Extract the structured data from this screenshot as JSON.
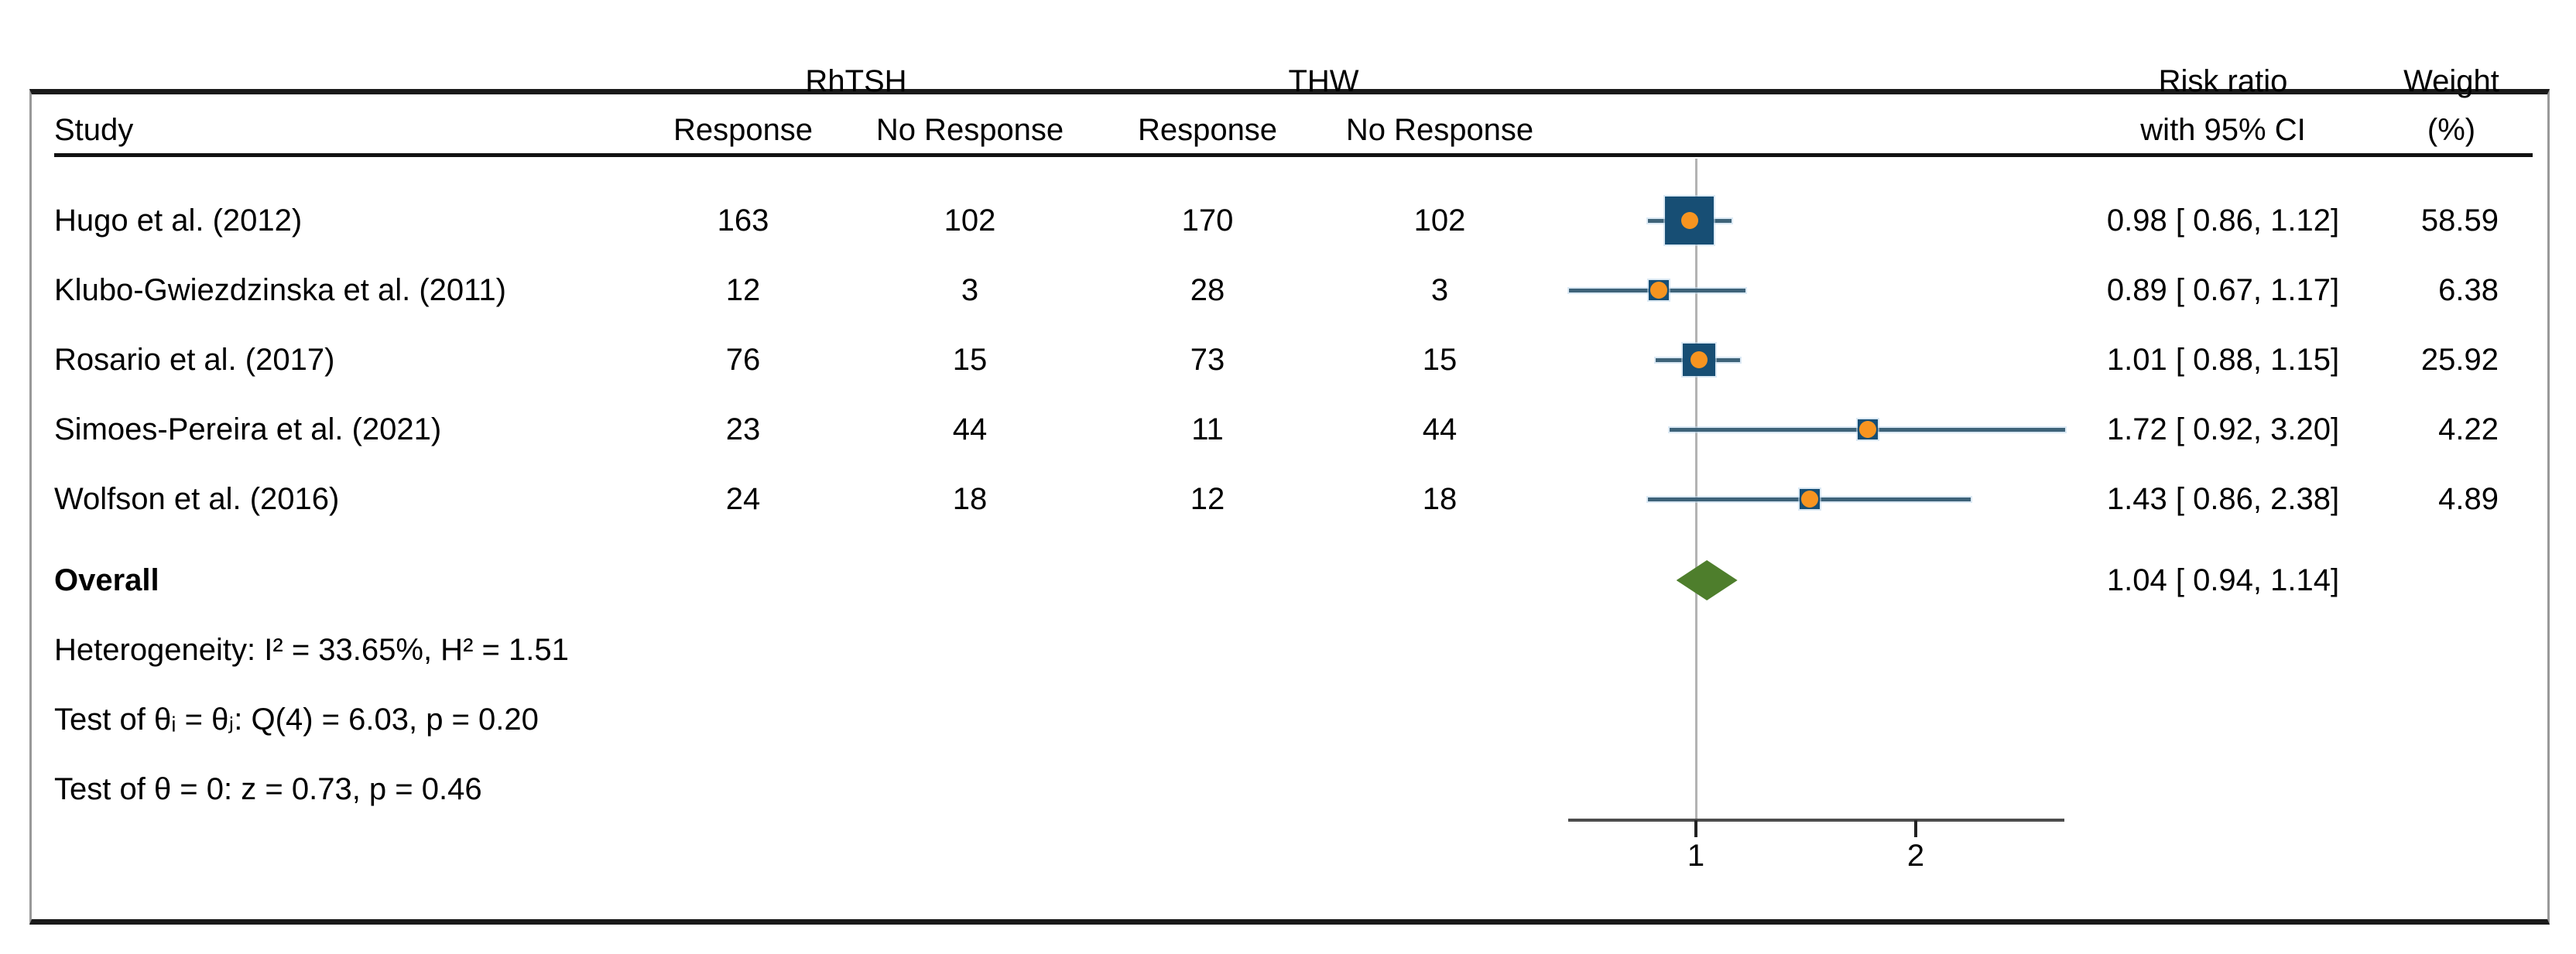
{
  "chart_data": {
    "type": "forest",
    "header": {
      "study_col": "Study",
      "group1": "RhTSH",
      "group2": "THW",
      "sub_cols": [
        "Response",
        "No Response",
        "Response",
        "No Response"
      ],
      "effect_line1": "Risk ratio",
      "effect_line2": "with 95% CI",
      "weight_line1": "Weight",
      "weight_line2": "(%)"
    },
    "studies": [
      {
        "label": "Hugo et al. (2012)",
        "rhtsh_response": 163,
        "rhtsh_no_response": 102,
        "thw_response": 170,
        "thw_no_response": 102,
        "rr": 0.98,
        "ci_low": 0.86,
        "ci_high": 1.12,
        "rr_text": "0.98 [ 0.86, 1.12]",
        "weight": 58.59,
        "weight_text": "58.59"
      },
      {
        "label": "Klubo-Gwiezdzinska et al. (2011)",
        "rhtsh_response": 12,
        "rhtsh_no_response": 3,
        "thw_response": 28,
        "thw_no_response": 3,
        "rr": 0.89,
        "ci_low": 0.67,
        "ci_high": 1.17,
        "rr_text": "0.89 [ 0.67, 1.17]",
        "weight": 6.38,
        "weight_text": "6.38"
      },
      {
        "label": "Rosario et al. (2017)",
        "rhtsh_response": 76,
        "rhtsh_no_response": 15,
        "thw_response": 73,
        "thw_no_response": 15,
        "rr": 1.01,
        "ci_low": 0.88,
        "ci_high": 1.15,
        "rr_text": "1.01 [ 0.88, 1.15]",
        "weight": 25.92,
        "weight_text": "25.92"
      },
      {
        "label": "Simoes-Pereira et al. (2021)",
        "rhtsh_response": 23,
        "rhtsh_no_response": 44,
        "thw_response": 11,
        "thw_no_response": 44,
        "rr": 1.72,
        "ci_low": 0.92,
        "ci_high": 3.2,
        "rr_text": "1.72 [ 0.92, 3.20]",
        "weight": 4.22,
        "weight_text": "4.22"
      },
      {
        "label": "Wolfson et al. (2016)",
        "rhtsh_response": 24,
        "rhtsh_no_response": 18,
        "thw_response": 12,
        "thw_no_response": 18,
        "rr": 1.43,
        "ci_low": 0.86,
        "ci_high": 2.38,
        "rr_text": "1.43 [ 0.86, 2.38]",
        "weight": 4.89,
        "weight_text": "4.89"
      }
    ],
    "overall": {
      "label": "Overall",
      "rr": 1.04,
      "ci_low": 0.94,
      "ci_high": 1.14,
      "rr_text": "1.04 [ 0.94, 1.14]"
    },
    "stats": [
      "Heterogeneity: I² = 33.65%, H² = 1.51",
      "Test of θᵢ = θⱼ: Q(4) = 6.03, p = 0.20",
      "Test of θ = 0: z = 0.73, p = 0.46"
    ],
    "axis": {
      "scale": "log2",
      "min": 0.67,
      "max": 3.2,
      "ref_value": 1,
      "ticks": [
        1,
        2
      ],
      "tick_labels": [
        "1",
        "2"
      ]
    },
    "colors": {
      "square": "#174e74",
      "dot": "#f79420",
      "ci_line": "#3e6379",
      "diamond": "#4e7e2c",
      "ref_line": "#b3b3b3",
      "axis_line": "#4d4d4d",
      "tick": "#222222",
      "text": "#000000"
    }
  }
}
